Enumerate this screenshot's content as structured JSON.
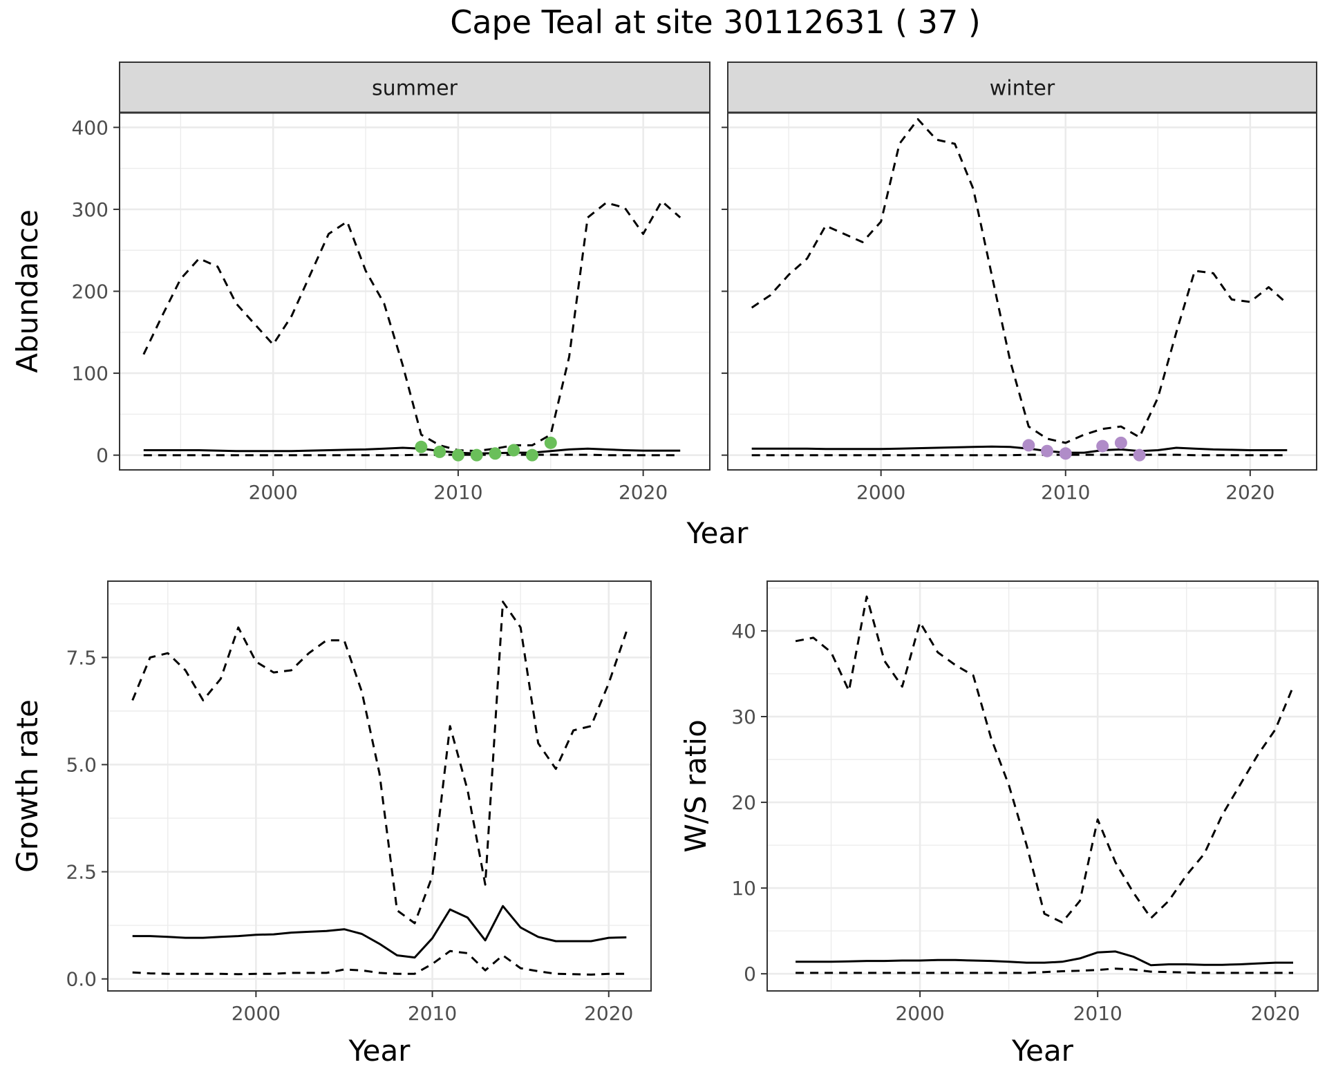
{
  "title": "Cape Teal at site 30112631 ( 37 )",
  "colors": {
    "summer_points": "#6abf5a",
    "winter_points": "#b08cc8",
    "line": "#000000",
    "strip_bg": "#d9d9d9",
    "grid": "#ebebeb"
  },
  "chart_data": [
    {
      "type": "line",
      "panel": "summer",
      "strip": "summer",
      "ylabel": "Abundance",
      "xlabel": "Year",
      "xlim": [
        1991.7,
        2023.6
      ],
      "ylim": [
        -18,
        418
      ],
      "xticks": [
        2000,
        2010,
        2020
      ],
      "yticks": [
        0,
        100,
        200,
        300,
        400
      ],
      "show_ytick_labels": true,
      "series": [
        {
          "role": "upper",
          "style": "dashed",
          "x": [
            1993,
            1994,
            1995,
            1996,
            1997,
            1998,
            1999,
            2000,
            2001,
            2002,
            2003,
            2004,
            2005,
            2006,
            2007,
            2008,
            2009,
            2010,
            2011,
            2012,
            2013,
            2014,
            2015,
            2016,
            2017,
            2018,
            2019,
            2020,
            2021,
            2022
          ],
          "y": [
            123,
            170,
            215,
            240,
            230,
            185,
            160,
            135,
            170,
            220,
            270,
            285,
            225,
            185,
            110,
            25,
            12,
            6,
            5,
            8,
            12,
            12,
            25,
            120,
            290,
            308,
            302,
            270,
            310,
            290
          ]
        },
        {
          "role": "mean",
          "style": "solid",
          "x": [
            1993,
            1994,
            1995,
            1996,
            1997,
            1998,
            1999,
            2000,
            2001,
            2002,
            2003,
            2004,
            2005,
            2006,
            2007,
            2008,
            2009,
            2010,
            2011,
            2012,
            2013,
            2014,
            2015,
            2016,
            2017,
            2018,
            2019,
            2020,
            2021,
            2022
          ],
          "y": [
            6,
            6,
            6,
            6,
            5.5,
            5,
            5,
            5,
            5,
            5.5,
            6,
            6.5,
            7,
            8,
            9,
            8,
            5,
            3,
            2,
            2.5,
            3,
            3,
            5,
            7,
            8,
            7,
            6,
            5.5,
            5.5,
            5.5
          ]
        },
        {
          "role": "lower",
          "style": "dashed",
          "x": [
            1993,
            1994,
            1995,
            1996,
            1997,
            1998,
            1999,
            2000,
            2001,
            2002,
            2003,
            2004,
            2005,
            2006,
            2007,
            2008,
            2009,
            2010,
            2011,
            2012,
            2013,
            2014,
            2015,
            2016,
            2017,
            2018,
            2019,
            2020,
            2021,
            2022
          ],
          "y": [
            0,
            0,
            0,
            0,
            0,
            0,
            0,
            0,
            0,
            0,
            0,
            0,
            0,
            0,
            0,
            0.5,
            0.5,
            0.5,
            0.5,
            0.5,
            0.5,
            0.5,
            0.5,
            0.5,
            0.5,
            0,
            0,
            0,
            0,
            0
          ]
        }
      ],
      "points": {
        "x": [
          2008,
          2009,
          2010,
          2011,
          2012,
          2013,
          2014,
          2015
        ],
        "y": [
          10,
          4,
          0,
          0,
          2,
          6,
          0,
          15
        ]
      }
    },
    {
      "type": "line",
      "panel": "winter",
      "strip": "winter",
      "ylabel": "",
      "xlabel": "",
      "xlim": [
        1991.7,
        2023.6
      ],
      "ylim": [
        -18,
        418
      ],
      "xticks": [
        2000,
        2010,
        2020
      ],
      "yticks": [
        0,
        100,
        200,
        300,
        400
      ],
      "show_ytick_labels": false,
      "series": [
        {
          "role": "upper",
          "style": "dashed",
          "x": [
            1993,
            1994,
            1995,
            1996,
            1997,
            1998,
            1999,
            2000,
            2001,
            2002,
            2003,
            2004,
            2005,
            2006,
            2007,
            2008,
            2009,
            2010,
            2011,
            2012,
            2013,
            2014,
            2015,
            2016,
            2017,
            2018,
            2019,
            2020,
            2021,
            2022
          ],
          "y": [
            180,
            195,
            220,
            240,
            280,
            270,
            260,
            285,
            380,
            410,
            385,
            380,
            325,
            220,
            115,
            35,
            20,
            15,
            25,
            32,
            35,
            22,
            70,
            150,
            225,
            222,
            190,
            187,
            205,
            185
          ]
        },
        {
          "role": "mean",
          "style": "solid",
          "x": [
            1993,
            1994,
            1995,
            1996,
            1997,
            1998,
            1999,
            2000,
            2001,
            2002,
            2003,
            2004,
            2005,
            2006,
            2007,
            2008,
            2009,
            2010,
            2011,
            2012,
            2013,
            2014,
            2015,
            2016,
            2017,
            2018,
            2019,
            2020,
            2021,
            2022
          ],
          "y": [
            8,
            8,
            8,
            8,
            7.5,
            7.5,
            7.5,
            7.5,
            8,
            8.5,
            9,
            9.5,
            10,
            10.5,
            10,
            8,
            5,
            3,
            3,
            6,
            7,
            5,
            6,
            9,
            8,
            7,
            6.5,
            6,
            6,
            6
          ]
        },
        {
          "role": "lower",
          "style": "dashed",
          "x": [
            1993,
            1994,
            1995,
            1996,
            1997,
            1998,
            1999,
            2000,
            2001,
            2002,
            2003,
            2004,
            2005,
            2006,
            2007,
            2008,
            2009,
            2010,
            2011,
            2012,
            2013,
            2014,
            2015,
            2016,
            2017,
            2018,
            2019,
            2020,
            2021,
            2022
          ],
          "y": [
            0,
            0,
            0,
            0,
            0,
            0,
            0,
            0,
            0,
            0,
            0,
            0,
            0,
            0,
            0,
            0.5,
            0.5,
            0.5,
            0.5,
            0.5,
            0.5,
            0.5,
            0.5,
            0.5,
            0,
            0,
            0,
            0,
            0,
            0
          ]
        }
      ],
      "points": {
        "x": [
          2008,
          2009,
          2010,
          2012,
          2013,
          2014
        ],
        "y": [
          12,
          5,
          2,
          11,
          15,
          0
        ]
      }
    },
    {
      "type": "line",
      "panel": "growth",
      "ylabel": "Growth rate",
      "xlabel": "Year",
      "xlim": [
        1991.6,
        2022.4
      ],
      "ylim": [
        -0.28,
        9.28
      ],
      "xticks": [
        2000,
        2010,
        2020
      ],
      "yticks": [
        0.0,
        2.5,
        5.0,
        7.5
      ],
      "ytick_labels": [
        "0.0",
        "2.5",
        "5.0",
        "7.5"
      ],
      "show_ytick_labels": true,
      "series": [
        {
          "role": "upper",
          "style": "dashed",
          "x": [
            1993,
            1994,
            1995,
            1996,
            1997,
            1998,
            1999,
            2000,
            2001,
            2002,
            2003,
            2004,
            2005,
            2006,
            2007,
            2008,
            2009,
            2010,
            2011,
            2012,
            2013,
            2014,
            2015,
            2016,
            2017,
            2018,
            2019,
            2020,
            2021
          ],
          "y": [
            6.5,
            7.5,
            7.6,
            7.2,
            6.5,
            7.0,
            8.2,
            7.4,
            7.15,
            7.2,
            7.6,
            7.9,
            7.9,
            6.7,
            4.8,
            1.6,
            1.3,
            2.4,
            5.9,
            4.4,
            2.2,
            8.8,
            8.2,
            5.5,
            4.9,
            5.8,
            5.9,
            6.9,
            8.1
          ]
        },
        {
          "role": "mean",
          "style": "solid",
          "x": [
            1993,
            1994,
            1995,
            1996,
            1997,
            1998,
            1999,
            2000,
            2001,
            2002,
            2003,
            2004,
            2005,
            2006,
            2007,
            2008,
            2009,
            2010,
            2011,
            2012,
            2013,
            2014,
            2015,
            2016,
            2017,
            2018,
            2019,
            2020,
            2021
          ],
          "y": [
            1.0,
            1.0,
            0.98,
            0.96,
            0.96,
            0.98,
            1.0,
            1.03,
            1.04,
            1.08,
            1.1,
            1.12,
            1.16,
            1.05,
            0.82,
            0.55,
            0.5,
            0.95,
            1.62,
            1.43,
            0.9,
            1.7,
            1.2,
            0.98,
            0.88,
            0.88,
            0.88,
            0.96,
            0.97
          ]
        },
        {
          "role": "lower",
          "style": "dashed",
          "x": [
            1993,
            1994,
            1995,
            1996,
            1997,
            1998,
            1999,
            2000,
            2001,
            2002,
            2003,
            2004,
            2005,
            2006,
            2007,
            2008,
            2009,
            2010,
            2011,
            2012,
            2013,
            2014,
            2015,
            2016,
            2017,
            2018,
            2019,
            2020,
            2021
          ],
          "y": [
            0.15,
            0.13,
            0.12,
            0.12,
            0.12,
            0.12,
            0.11,
            0.12,
            0.12,
            0.14,
            0.14,
            0.14,
            0.22,
            0.2,
            0.14,
            0.12,
            0.12,
            0.35,
            0.65,
            0.6,
            0.2,
            0.55,
            0.25,
            0.18,
            0.12,
            0.11,
            0.1,
            0.12,
            0.12
          ]
        }
      ]
    },
    {
      "type": "line",
      "panel": "ratio",
      "ylabel": "W/S ratio",
      "xlabel": "Year",
      "xlim": [
        1991.4,
        2022.4
      ],
      "ylim": [
        -2.0,
        45.8
      ],
      "xticks": [
        2000,
        2010,
        2020
      ],
      "yticks": [
        0,
        10,
        20,
        30,
        40
      ],
      "show_ytick_labels": true,
      "series": [
        {
          "role": "upper",
          "style": "dashed",
          "x": [
            1993,
            1994,
            1995,
            1996,
            1997,
            1998,
            1999,
            2000,
            2001,
            2002,
            2003,
            2004,
            2005,
            2006,
            2007,
            2008,
            2009,
            2010,
            2011,
            2012,
            2013,
            2014,
            2015,
            2016,
            2017,
            2018,
            2019,
            2020,
            2021
          ],
          "y": [
            38.8,
            39.2,
            37.5,
            33,
            44,
            36.5,
            33.5,
            41,
            37.5,
            36,
            34.8,
            27.5,
            22,
            15,
            7,
            6,
            8.5,
            18,
            13,
            9.5,
            6.5,
            8.5,
            11.5,
            14,
            18.5,
            22,
            25.5,
            28.5,
            33.5
          ]
        },
        {
          "role": "mean",
          "style": "solid",
          "x": [
            1993,
            1994,
            1995,
            1996,
            1997,
            1998,
            1999,
            2000,
            2001,
            2002,
            2003,
            2004,
            2005,
            2006,
            2007,
            2008,
            2009,
            2010,
            2011,
            2012,
            2013,
            2014,
            2015,
            2016,
            2017,
            2018,
            2019,
            2020,
            2021
          ],
          "y": [
            1.4,
            1.4,
            1.4,
            1.45,
            1.5,
            1.5,
            1.55,
            1.55,
            1.6,
            1.6,
            1.55,
            1.5,
            1.4,
            1.3,
            1.3,
            1.4,
            1.8,
            2.5,
            2.6,
            2.0,
            1.0,
            1.1,
            1.1,
            1.05,
            1.05,
            1.1,
            1.2,
            1.3,
            1.3
          ]
        },
        {
          "role": "lower",
          "style": "dashed",
          "x": [
            1993,
            1994,
            1995,
            1996,
            1997,
            1998,
            1999,
            2000,
            2001,
            2002,
            2003,
            2004,
            2005,
            2006,
            2007,
            2008,
            2009,
            2010,
            2011,
            2012,
            2013,
            2014,
            2015,
            2016,
            2017,
            2018,
            2019,
            2020,
            2021
          ],
          "y": [
            0.1,
            0.1,
            0.1,
            0.1,
            0.1,
            0.1,
            0.1,
            0.1,
            0.1,
            0.1,
            0.1,
            0.1,
            0.1,
            0.1,
            0.2,
            0.3,
            0.35,
            0.45,
            0.6,
            0.5,
            0.25,
            0.2,
            0.15,
            0.1,
            0.1,
            0.1,
            0.1,
            0.1,
            0.1
          ]
        }
      ]
    }
  ]
}
